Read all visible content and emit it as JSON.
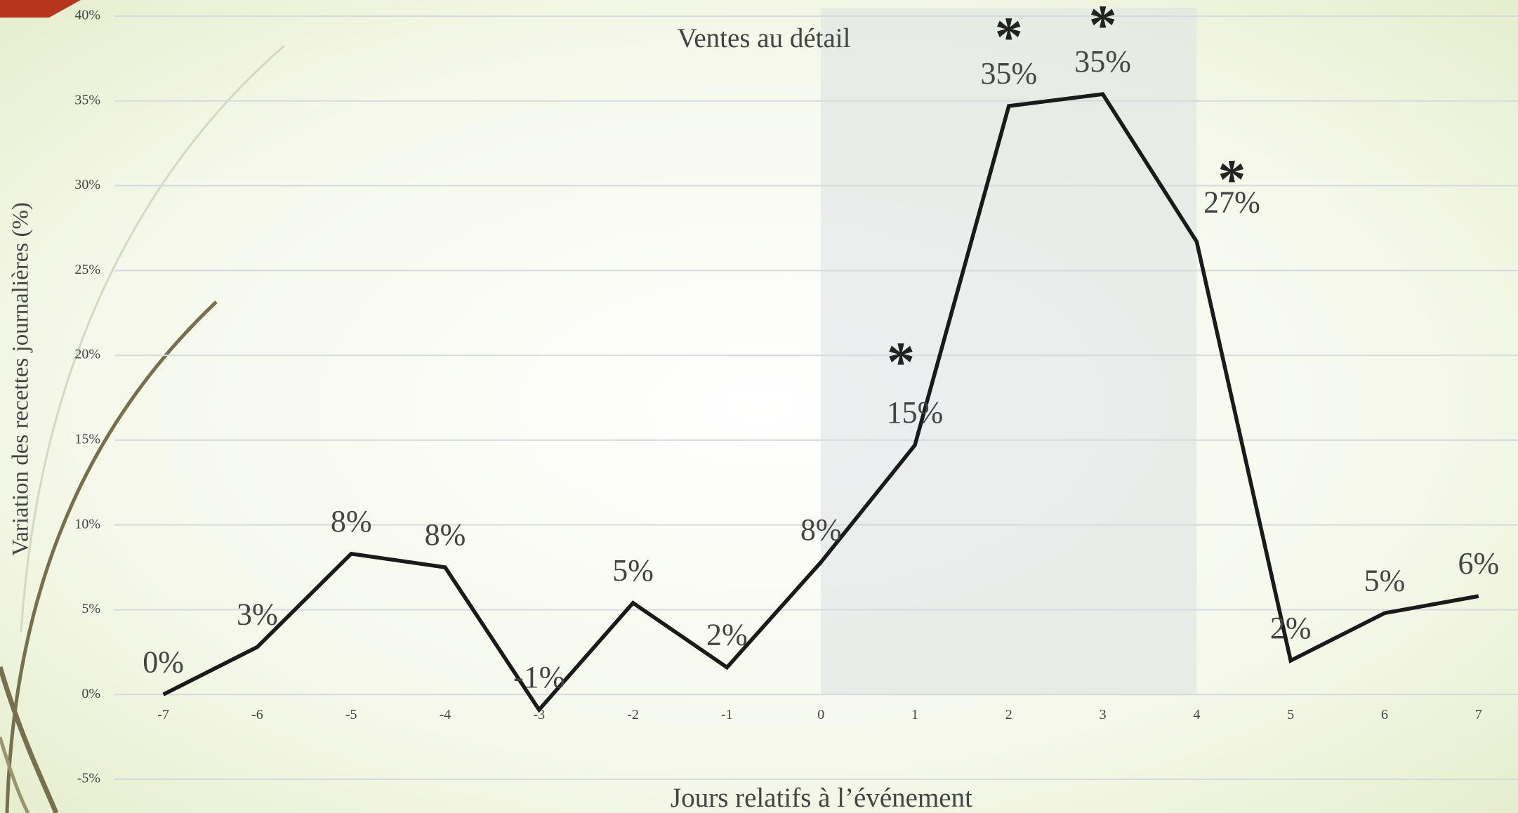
{
  "chart_data": {
    "type": "line",
    "title": "Ventes au détail",
    "x_label": "Jours relatifs à l’événement",
    "y_label": "Variation des recettes journalières (%)",
    "x": [
      -7,
      -6,
      -5,
      -4,
      -3,
      -2,
      -1,
      0,
      1,
      2,
      3,
      4,
      5,
      6,
      7
    ],
    "series": [
      {
        "name": "Ventes au détail",
        "color": "#1a1a1a",
        "values": [
          0,
          2.8,
          8.3,
          7.5,
          -0.9,
          5.4,
          1.6,
          7.8,
          14.7,
          34.7,
          35.4,
          26.7,
          2.0,
          4.8,
          5.8
        ],
        "value_labels": [
          "0%",
          "3%",
          "8%",
          "8%",
          "-1%",
          "5%",
          "2%",
          "8%",
          "15%",
          "35%",
          "35%",
          "27%",
          "2%",
          "5%",
          "6%"
        ]
      }
    ],
    "highlight_range": [
      0,
      4
    ],
    "annotations": [
      {
        "text": "*",
        "x": 1
      },
      {
        "text": "*",
        "x": 2
      },
      {
        "text": "*",
        "x": 3
      },
      {
        "text": "*",
        "x": 4
      }
    ],
    "xlim": [
      -7.52,
      7.42
    ],
    "ylim": [
      -5,
      40
    ],
    "xticks": [
      -7,
      -6,
      -5,
      -4,
      -3,
      -2,
      -1,
      0,
      1,
      2,
      3,
      4,
      5,
      6,
      7
    ],
    "yticks": [
      {
        "value": -5,
        "label": "-5%"
      },
      {
        "value": 0,
        "label": "0%"
      },
      {
        "value": 5,
        "label": "5%"
      },
      {
        "value": 10,
        "label": "10%"
      },
      {
        "value": 15,
        "label": "15%"
      },
      {
        "value": 20,
        "label": "20%"
      },
      {
        "value": 25,
        "label": "25%"
      },
      {
        "value": 30,
        "label": "30%"
      },
      {
        "value": 35,
        "label": "35%"
      },
      {
        "value": 40,
        "label": "40%"
      }
    ],
    "grid": true
  }
}
